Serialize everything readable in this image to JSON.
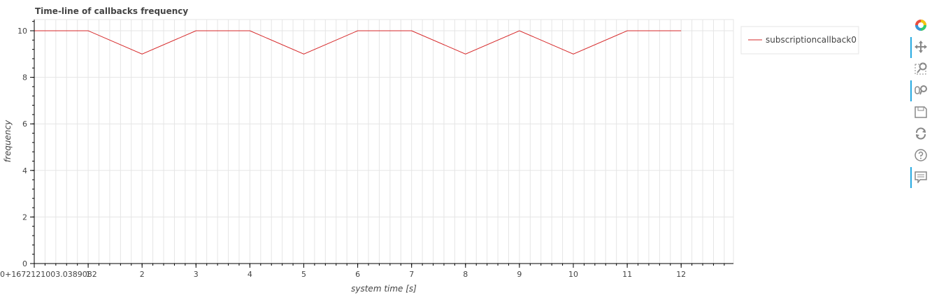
{
  "chart_data": {
    "type": "line",
    "title": "Time-line of callbacks frequency",
    "xlabel": "system time [s]",
    "ylabel": "frequency",
    "x_offset_label": "0+1672121003.0389082",
    "xlim": [
      0,
      13
    ],
    "ylim": [
      0,
      10.5
    ],
    "x_ticks": [
      1,
      2,
      3,
      4,
      5,
      6,
      7,
      8,
      9,
      10,
      11,
      12
    ],
    "y_ticks": [
      0,
      2,
      4,
      6,
      8,
      10
    ],
    "grid": true,
    "legend_position": "top-right, outside plot",
    "series": [
      {
        "name": "subscriptioncallback0",
        "color": "#d62728",
        "x": [
          0,
          1,
          2,
          3,
          4,
          5,
          6,
          7,
          8,
          9,
          10,
          11,
          12
        ],
        "y": [
          10,
          10,
          9,
          10,
          10,
          9,
          10,
          10,
          9,
          10,
          9,
          10,
          10
        ]
      }
    ]
  },
  "toolbar": {
    "tools": [
      {
        "name": "bokeh-logo-icon",
        "active": false
      },
      {
        "name": "pan-icon",
        "active": true
      },
      {
        "name": "box-zoom-icon",
        "active": false
      },
      {
        "name": "wheel-zoom-icon",
        "active": true
      },
      {
        "name": "save-icon",
        "active": false
      },
      {
        "name": "reset-icon",
        "active": false
      },
      {
        "name": "help-icon",
        "active": false
      },
      {
        "name": "hover-icon",
        "active": true
      }
    ]
  }
}
